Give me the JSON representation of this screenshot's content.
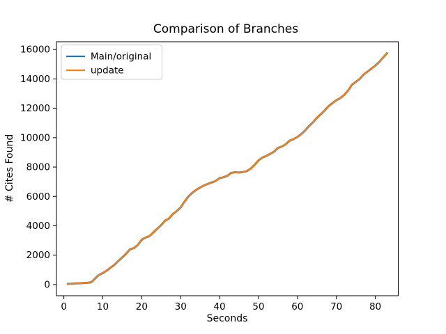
{
  "chart_data": {
    "type": "line",
    "title": "Comparison of Branches",
    "xlabel": "Seconds",
    "ylabel": "# Cites Found",
    "grid": false,
    "legend": {
      "position": "upper-left",
      "entries": [
        "Main/original",
        "update"
      ]
    },
    "xlim": [
      -1.9,
      85.9
    ],
    "ylim": [
      -760,
      16530
    ],
    "xticks": [
      0,
      10,
      20,
      30,
      40,
      50,
      60,
      70,
      80
    ],
    "yticks": [
      0,
      2000,
      4000,
      6000,
      8000,
      10000,
      12000,
      14000,
      16000
    ],
    "xtick_labels": [
      "0",
      "10",
      "20",
      "30",
      "40",
      "50",
      "60",
      "70",
      "80"
    ],
    "ytick_labels": [
      "0",
      "2000",
      "4000",
      "6000",
      "8000",
      "10000",
      "12000",
      "14000",
      "16000"
    ],
    "x": [
      1,
      2,
      3,
      4,
      5,
      6,
      7,
      8,
      9,
      10,
      11,
      12,
      13,
      14,
      15,
      16,
      17,
      18,
      19,
      20,
      21,
      22,
      23,
      24,
      25,
      26,
      27,
      28,
      29,
      30,
      31,
      32,
      33,
      34,
      35,
      36,
      37,
      38,
      39,
      40,
      41,
      42,
      43,
      44,
      45,
      46,
      47,
      48,
      49,
      50,
      51,
      52,
      53,
      54,
      55,
      56,
      57,
      58,
      59,
      60,
      61,
      62,
      63,
      64,
      65,
      66,
      67,
      68,
      69,
      70,
      71,
      72,
      73,
      74,
      75,
      76,
      77,
      78,
      79,
      80,
      81,
      82,
      83
    ],
    "series": [
      {
        "name": "Main/original",
        "color": "#1f77b4",
        "values": [
          50,
          60,
          80,
          90,
          100,
          120,
          150,
          400,
          650,
          780,
          950,
          1150,
          1350,
          1600,
          1850,
          2100,
          2400,
          2480,
          2700,
          3050,
          3200,
          3300,
          3550,
          3800,
          4050,
          4350,
          4500,
          4800,
          5000,
          5250,
          5650,
          6000,
          6250,
          6450,
          6600,
          6750,
          6850,
          6950,
          7050,
          7250,
          7300,
          7400,
          7600,
          7650,
          7630,
          7660,
          7720,
          7900,
          8150,
          8450,
          8650,
          8750,
          8900,
          9050,
          9300,
          9400,
          9550,
          9800,
          9900,
          10050,
          10250,
          10500,
          10800,
          11050,
          11350,
          11600,
          11850,
          12150,
          12350,
          12550,
          12700,
          12900,
          13200,
          13600,
          13800,
          14000,
          14300,
          14500,
          14700,
          14900,
          15150,
          15450,
          15750
        ]
      },
      {
        "name": "update",
        "color": "#ff7f0e",
        "values": [
          50,
          60,
          80,
          90,
          100,
          120,
          150,
          400,
          650,
          780,
          950,
          1150,
          1350,
          1600,
          1850,
          2100,
          2400,
          2480,
          2700,
          3050,
          3200,
          3300,
          3550,
          3800,
          4050,
          4350,
          4500,
          4800,
          5000,
          5250,
          5650,
          6000,
          6250,
          6450,
          6600,
          6750,
          6850,
          6950,
          7050,
          7250,
          7300,
          7400,
          7600,
          7650,
          7630,
          7660,
          7720,
          7900,
          8150,
          8450,
          8650,
          8750,
          8900,
          9050,
          9300,
          9400,
          9550,
          9800,
          9900,
          10050,
          10250,
          10500,
          10800,
          11050,
          11350,
          11600,
          11850,
          12150,
          12350,
          12550,
          12700,
          12900,
          13200,
          13600,
          13800,
          14000,
          14300,
          14500,
          14700,
          14900,
          15150,
          15450,
          15750
        ]
      }
    ]
  }
}
